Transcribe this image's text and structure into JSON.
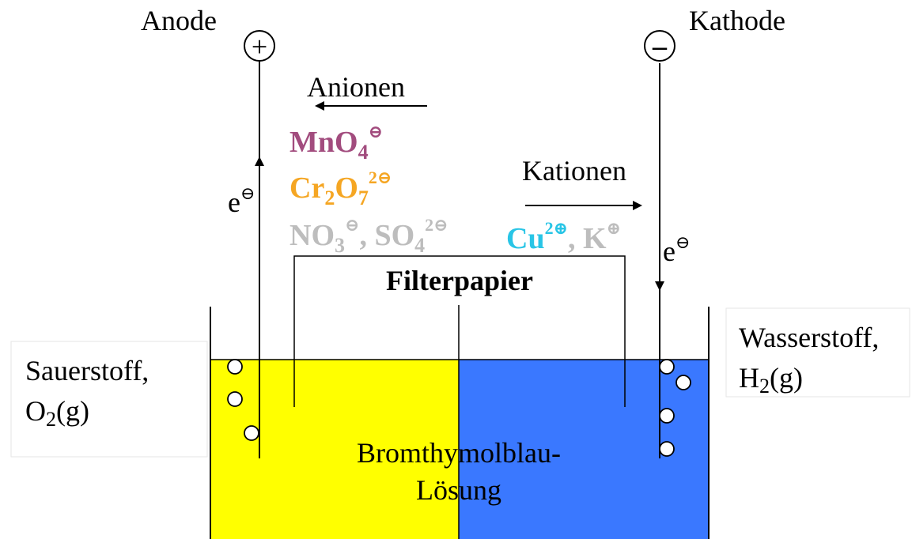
{
  "anode": {
    "label": "Anode",
    "sign": "+"
  },
  "cathode": {
    "label": "Kathode",
    "sign": "–"
  },
  "anionen": {
    "label": "Anionen"
  },
  "kationen": {
    "label": "Kationen"
  },
  "ions": {
    "permanganate": {
      "base": "MnO",
      "sub": "4",
      "sup": "⊖",
      "color": "#a24c7e"
    },
    "dichromate": {
      "base1": "Cr",
      "sub1": "2",
      "base2": "O",
      "sub2": "7",
      "sup": "2⊖",
      "color": "#f5a623"
    },
    "nitrate_sulfate": {
      "base1": "NO",
      "sub1": "3",
      "sup1": "⊖",
      "sep": ", SO",
      "sub2": "4",
      "sup2": "2⊖",
      "color": "#bdbdbd"
    },
    "copper": {
      "base": "Cu",
      "sup": "2⊕",
      "color": "#29c5e6"
    },
    "potassium": {
      "sep": ", K",
      "sup": "⊕",
      "color": "#bdbdbd"
    }
  },
  "electron_left": {
    "base": "e",
    "sup": "⊖"
  },
  "electron_right": {
    "base": "e",
    "sup": "⊖"
  },
  "filterpapier": {
    "label": "Filterpapier"
  },
  "solution": {
    "line1": "Bromthymolblau-",
    "line2": "Lösung"
  },
  "sauerstoff": {
    "line1": "Sauerstoff,",
    "line2_base": "O",
    "line2_sub": "2",
    "line2_rest": "(g)"
  },
  "wasserstoff": {
    "line1": "Wasserstoff,",
    "line2_base": "H",
    "line2_sub": "2",
    "line2_rest": "(g)"
  },
  "colors": {
    "acid_yellow": "#ffff00",
    "base_blue": "#3a78ff"
  }
}
